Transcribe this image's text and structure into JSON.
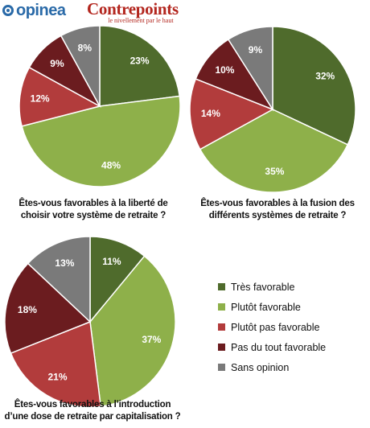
{
  "logos": {
    "opinea": "opinea",
    "contrepoints": "Contrepoints",
    "contrepoints_tagline": "le nivellement par le haut"
  },
  "colors": {
    "tres_favorable": "#4f6b2c",
    "plutot_favorable": "#8eb04a",
    "plutot_pas_favorable": "#b23c3c",
    "pas_du_tout_favorable": "#6b1c1f",
    "sans_opinion": "#7a7a7a"
  },
  "legend": [
    {
      "label": "Très favorable",
      "color": "#4f6b2c"
    },
    {
      "label": "Plutôt favorable",
      "color": "#8eb04a"
    },
    {
      "label": "Plutôt pas favorable",
      "color": "#b23c3c"
    },
    {
      "label": "Pas du tout favorable",
      "color": "#6b1c1f"
    },
    {
      "label": "Sans opinion",
      "color": "#7a7a7a"
    }
  ],
  "chart_data": [
    {
      "type": "pie",
      "question_lines": [
        "Êtes-vous favorables à la liberté de",
        "choisir votre système de retraite ?"
      ],
      "categories": [
        "Très favorable",
        "Plutôt favorable",
        "Plutôt pas favorable",
        "Pas du tout favorable",
        "Sans opinion"
      ],
      "values": [
        23,
        48,
        12,
        9,
        8
      ],
      "labels": [
        "23%",
        "48%",
        "12%",
        "9%",
        "8%"
      ]
    },
    {
      "type": "pie",
      "question_lines": [
        "Êtes-vous favorables à la fusion des",
        "différents systèmes de retraite ?"
      ],
      "categories": [
        "Très favorable",
        "Plutôt favorable",
        "Plutôt pas favorable",
        "Pas du tout favorable",
        "Sans opinion"
      ],
      "values": [
        32,
        35,
        14,
        10,
        9
      ],
      "labels": [
        "32%",
        "35%",
        "14%",
        "10%",
        "9%"
      ]
    },
    {
      "type": "pie",
      "question_lines": [
        "Êtes-vous favorables à l’introduction",
        "d’une dose de retraite par capitalisation ?"
      ],
      "categories": [
        "Très favorable",
        "Plutôt favorable",
        "Plutôt pas favorable",
        "Pas du tout favorable",
        "Sans opinion"
      ],
      "values": [
        11,
        37,
        21,
        18,
        13
      ],
      "labels": [
        "11%",
        "37%",
        "21%",
        "18%",
        "13%"
      ]
    }
  ]
}
